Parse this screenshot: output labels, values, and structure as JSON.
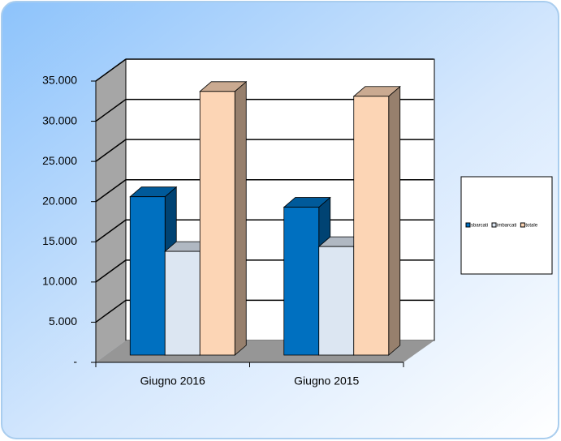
{
  "chart_data": {
    "type": "bar3d",
    "categories": [
      "Giugno 2016",
      "Giugno 2015"
    ],
    "series": [
      {
        "name": "sbarcati",
        "color": "#0070C0",
        "values": [
          19700,
          18400
        ]
      },
      {
        "name": "imbarcati",
        "color": "#DCE6F2",
        "values": [
          12900,
          13500
        ]
      },
      {
        "name": "totale",
        "color": "#FCD5B5",
        "values": [
          32800,
          32200
        ]
      }
    ],
    "ylim": [
      0,
      35000
    ],
    "yticks": [
      {
        "value": 0,
        "label": "-"
      },
      {
        "value": 5000,
        "label": "5.000"
      },
      {
        "value": 10000,
        "label": "10.000"
      },
      {
        "value": 15000,
        "label": "15.000"
      },
      {
        "value": 20000,
        "label": "20.000"
      },
      {
        "value": 25000,
        "label": "25.000"
      },
      {
        "value": 30000,
        "label": "30.000"
      },
      {
        "value": 35000,
        "label": "35.000"
      }
    ],
    "grid": true,
    "legend": "right"
  }
}
